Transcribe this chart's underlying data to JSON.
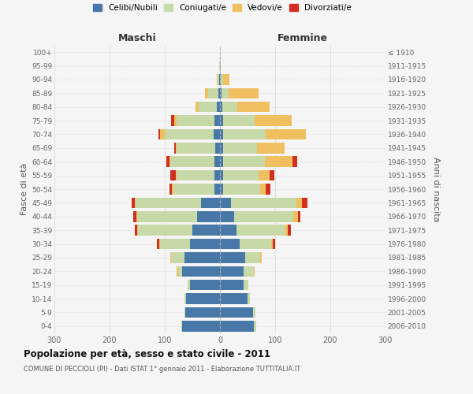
{
  "age_groups": [
    "0-4",
    "5-9",
    "10-14",
    "15-19",
    "20-24",
    "25-29",
    "30-34",
    "35-39",
    "40-44",
    "45-49",
    "50-54",
    "55-59",
    "60-64",
    "65-69",
    "70-74",
    "75-79",
    "80-84",
    "85-89",
    "90-94",
    "95-99",
    "100+"
  ],
  "birth_years": [
    "2006-2010",
    "2001-2005",
    "1996-2000",
    "1991-1995",
    "1986-1990",
    "1981-1985",
    "1976-1980",
    "1971-1975",
    "1966-1970",
    "1961-1965",
    "1956-1960",
    "1951-1955",
    "1946-1950",
    "1941-1945",
    "1936-1940",
    "1931-1935",
    "1926-1930",
    "1921-1925",
    "1916-1920",
    "1911-1915",
    "≤ 1910"
  ],
  "maschi": {
    "celibi": [
      68,
      63,
      62,
      55,
      68,
      65,
      55,
      50,
      42,
      35,
      10,
      10,
      10,
      8,
      12,
      10,
      6,
      3,
      2,
      0,
      0
    ],
    "coniugati": [
      2,
      2,
      2,
      3,
      8,
      23,
      53,
      98,
      108,
      118,
      75,
      68,
      80,
      70,
      88,
      68,
      32,
      18,
      3,
      1,
      0
    ],
    "vedovi": [
      0,
      0,
      0,
      0,
      2,
      2,
      2,
      2,
      2,
      2,
      2,
      2,
      2,
      2,
      8,
      5,
      6,
      6,
      1,
      0,
      0
    ],
    "divorziati": [
      0,
      0,
      0,
      0,
      0,
      0,
      4,
      5,
      5,
      5,
      5,
      10,
      5,
      3,
      3,
      5,
      0,
      0,
      0,
      0,
      0
    ]
  },
  "femmine": {
    "nubili": [
      62,
      60,
      50,
      43,
      43,
      45,
      35,
      30,
      25,
      20,
      5,
      5,
      5,
      5,
      5,
      5,
      4,
      3,
      2,
      0,
      0
    ],
    "coniugate": [
      4,
      4,
      4,
      8,
      18,
      28,
      58,
      88,
      108,
      118,
      68,
      65,
      77,
      62,
      78,
      58,
      28,
      12,
      3,
      0,
      0
    ],
    "vedove": [
      0,
      0,
      0,
      0,
      2,
      2,
      2,
      5,
      8,
      10,
      10,
      20,
      50,
      50,
      72,
      67,
      58,
      55,
      12,
      2,
      0
    ],
    "divorziate": [
      0,
      0,
      0,
      0,
      0,
      0,
      5,
      5,
      5,
      10,
      8,
      8,
      8,
      0,
      0,
      0,
      0,
      0,
      0,
      0,
      0
    ]
  },
  "colors": {
    "celibi": "#4878a8",
    "coniugati": "#c8d9a8",
    "vedovi": "#f0c060",
    "divorziati": "#d03020"
  },
  "title": "Popolazione per età, sesso e stato civile - 2011",
  "subtitle": "COMUNE DI PECCIOLI (PI) - Dati ISTAT 1° gennaio 2011 - Elaborazione TUTTITALIA.IT",
  "label_maschi": "Maschi",
  "label_femmine": "Femmine",
  "ylabel_left": "Fasce di età",
  "ylabel_right": "Anni di nascita",
  "xlim": 300,
  "bg_color": "#f5f5f5",
  "grid_color": "#dddddd",
  "legend_labels": [
    "Celibi/Nubili",
    "Coniugati/e",
    "Vedovi/e",
    "Divorziati/e"
  ]
}
